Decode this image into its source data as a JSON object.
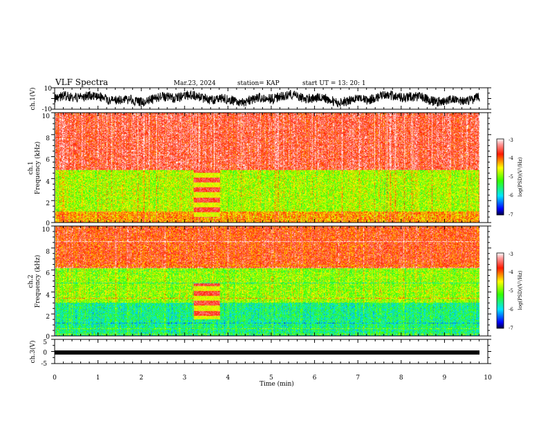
{
  "header": {
    "title": "VLF Spectra",
    "date": "Mar.23, 2024",
    "station": "station= KAP",
    "start": "start  UT  =   13: 20: 1"
  },
  "colors": {
    "spectrogram_low": "#1a00ff",
    "spectrogram_mid_low": "#00e5ff",
    "spectrogram_mid": "#33ff00",
    "spectrogram_mid_high": "#ffff00",
    "spectrogram_high": "#ff1a00",
    "spectrogram_max": "#ffffff",
    "waveform": "#000000"
  },
  "chart_data": [
    {
      "type": "line",
      "name": "ch1-waveform",
      "ylabel": "ch.1(V)",
      "ylim": [
        -10,
        10
      ],
      "yticks": [
        "10",
        "-10"
      ],
      "xlim": [
        0,
        10
      ],
      "description_values": {
        "typical_range": [
          -6,
          6
        ],
        "mean": 0
      }
    },
    {
      "type": "heatmap",
      "name": "ch1-spectrogram",
      "ylabel": "ch.1 Frequency  (kHz)",
      "ylabel_line1": "ch.1",
      "ylabel_line2": "Frequency  (kHz)",
      "ylim": [
        0,
        10
      ],
      "yticks": [
        "0",
        "2",
        "4",
        "6",
        "8",
        "10"
      ],
      "xlim": [
        0,
        10
      ],
      "colorbar": {
        "label": "log(PSD)(V²/Hz)",
        "range": [
          -7,
          -3
        ],
        "ticks": [
          "-3",
          "-4",
          "-5",
          "-6",
          "-7"
        ]
      },
      "bands": [
        {
          "f_min": 0,
          "f_max": 1,
          "log_psd": -4.2
        },
        {
          "f_min": 1,
          "f_max": 4.8,
          "log_psd": -4.8
        },
        {
          "f_min": 4.8,
          "f_max": 10,
          "log_psd": -3.6
        }
      ],
      "burst": {
        "t_start": 3.2,
        "t_end": 3.8,
        "f_min": 0.4,
        "f_max": 4.8
      }
    },
    {
      "type": "heatmap",
      "name": "ch2-spectrogram",
      "ylabel": "ch.2 Frequency  (kHz)",
      "ylabel_line1": "ch.2",
      "ylabel_line2": "Frequency  (kHz)",
      "ylim": [
        0,
        10
      ],
      "yticks": [
        "0",
        "2",
        "4",
        "6",
        "8",
        "10"
      ],
      "xlim": [
        0,
        10
      ],
      "colorbar": {
        "label": "log(PSD)(V²/Hz)",
        "range": [
          -7,
          -3
        ],
        "ticks": [
          "-3",
          "-4",
          "-5",
          "-6",
          "-7"
        ]
      },
      "bands": [
        {
          "f_min": 0,
          "f_max": 3,
          "log_psd": -5.6
        },
        {
          "f_min": 3,
          "f_max": 6.2,
          "log_psd": -4.9
        },
        {
          "f_min": 6.2,
          "f_max": 10,
          "log_psd": -3.8
        }
      ],
      "burst": {
        "t_start": 3.2,
        "t_end": 3.8,
        "f_min": 1.5,
        "f_max": 4.8
      }
    },
    {
      "type": "line",
      "name": "ch3-waveform",
      "ylabel": "ch.3(V)",
      "ylim": [
        -5,
        5
      ],
      "yticks": [
        "5",
        "0",
        "-5"
      ],
      "xlim": [
        0,
        10
      ],
      "xlabel": "Time  (min)",
      "xticks": [
        "0",
        "1",
        "2",
        "3",
        "4",
        "5",
        "6",
        "7",
        "8",
        "9",
        "10"
      ],
      "description_values": {
        "level": 0,
        "band": [
          -0.6,
          0.6
        ]
      }
    }
  ]
}
